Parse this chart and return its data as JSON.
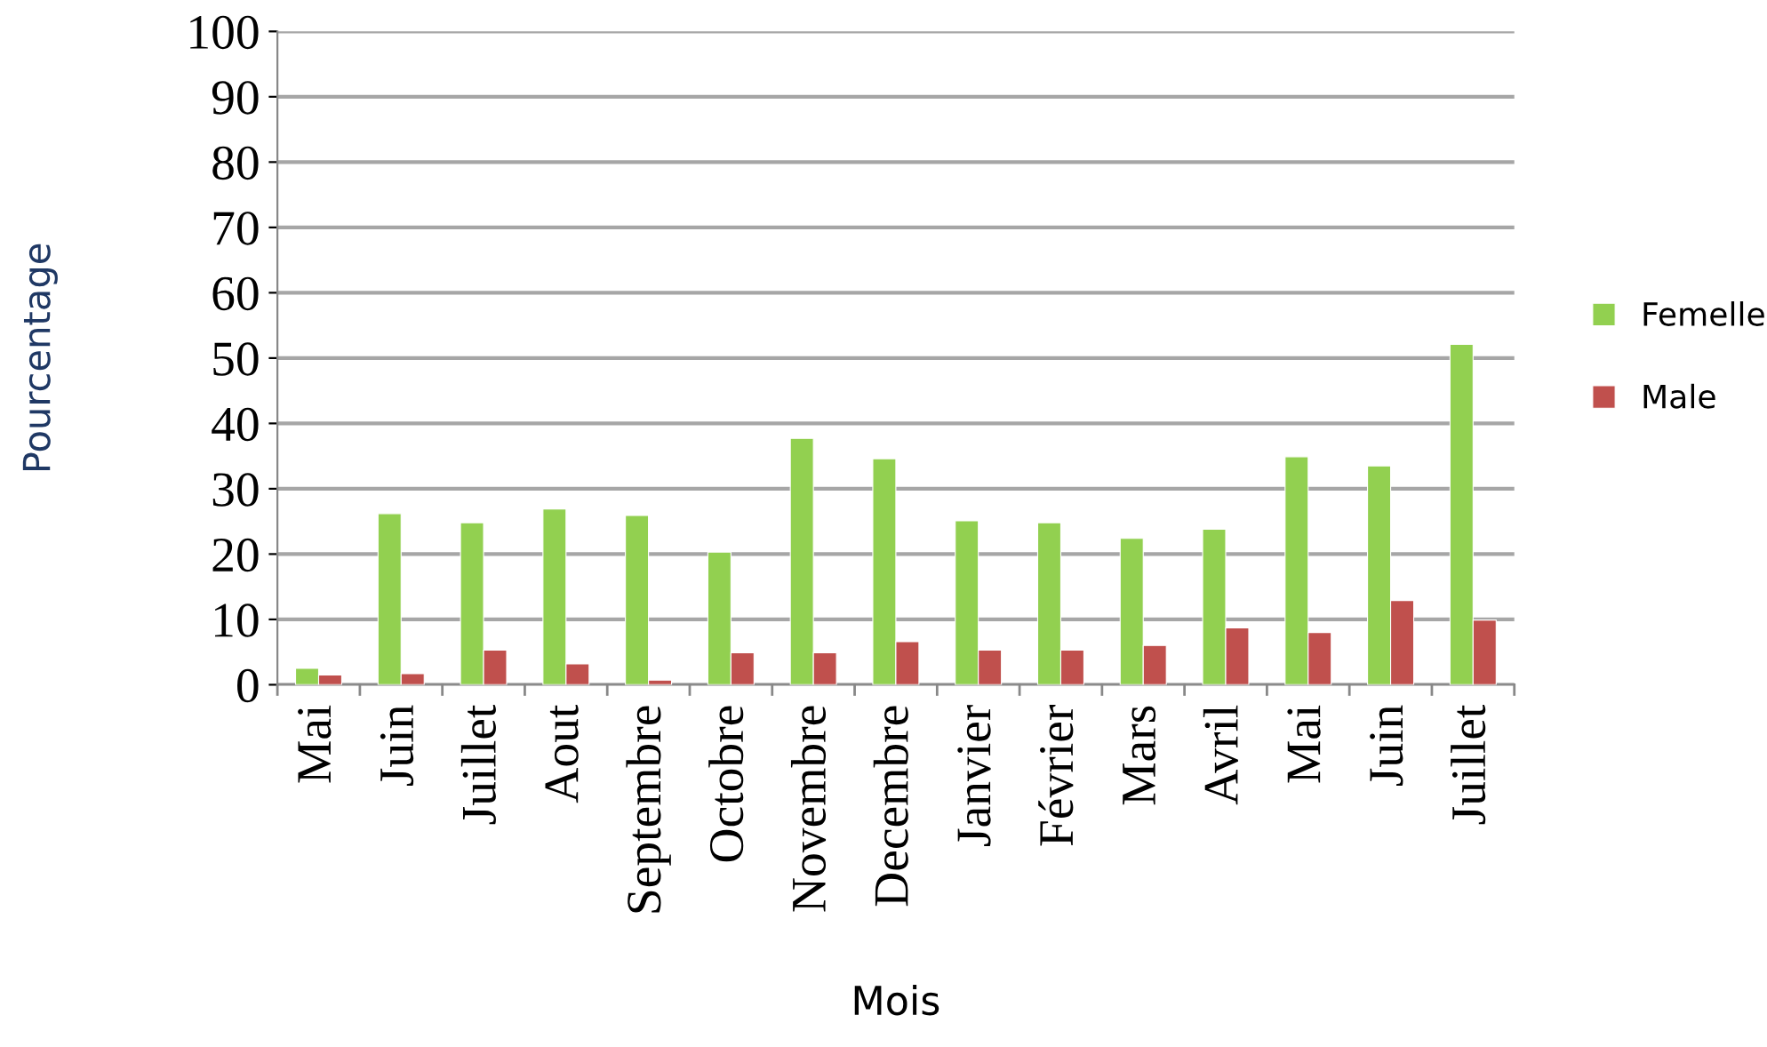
{
  "chart_data": {
    "type": "bar",
    "xlabel": "Mois",
    "ylabel": "Pourcentage",
    "categories": [
      "Mai",
      "Juin",
      "Juillet",
      "Aout",
      "Septembre",
      "Octobre",
      "Novembre",
      "Decembre",
      "Janvier",
      "Février",
      "Mars",
      "Avril",
      "Mai",
      "Juin",
      "Juillet"
    ],
    "series": [
      {
        "name": "Femelle",
        "color": "#92d050",
        "values": [
          2.5,
          26.2,
          24.8,
          26.9,
          25.9,
          20.3,
          37.7,
          34.6,
          25.1,
          24.8,
          22.4,
          23.8,
          34.9,
          33.5,
          52.1
        ]
      },
      {
        "name": "Male",
        "color": "#c0504d",
        "values": [
          1.5,
          1.7,
          5.3,
          3.2,
          0.7,
          4.9,
          4.9,
          6.6,
          5.3,
          5.3,
          6.0,
          8.7,
          8.0,
          12.9,
          9.9
        ]
      }
    ],
    "ylim": [
      0,
      100
    ],
    "yticks": [
      0,
      10,
      20,
      30,
      40,
      50,
      60,
      70,
      80,
      90,
      100
    ],
    "grid": "y",
    "legend": "right"
  }
}
